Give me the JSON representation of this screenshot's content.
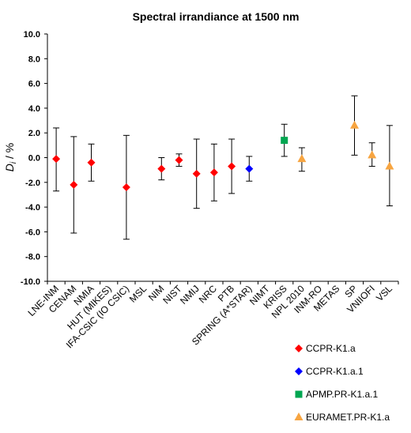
{
  "chart_data": {
    "type": "scatter",
    "title": "Spectral irrandiance at 1500 nm",
    "ylabel_main": "D",
    "ylabel_sub": "i",
    "ylabel_rest": " / %",
    "xlabel": "",
    "ylim": [
      -10.0,
      10.0
    ],
    "ytick_step": 2.0,
    "grid": false,
    "legend_position": "bottom-right",
    "categories": [
      "LNE-INM",
      "CENAM",
      "NMIA",
      "HUT (MIKES)",
      "IFA-CSIC (IO CSIC)",
      "MSL",
      "NIM",
      "NIST",
      "NMIJ",
      "NRC",
      "PTB",
      "SPRING (A*STAR)",
      "NIMT",
      "KRISS",
      "NPL 2010",
      "INM-RO",
      "METAS",
      "SP",
      "VNIIOFI",
      "VSL"
    ],
    "series": [
      {
        "name": "CCPR-K1.a",
        "marker": "diamond",
        "color": "#ff0000",
        "points": [
          {
            "category": "LNE-INM",
            "y": -0.1,
            "yerr_low": -2.7,
            "yerr_high": 2.4
          },
          {
            "category": "CENAM",
            "y": -2.2,
            "yerr_low": -6.1,
            "yerr_high": 1.7
          },
          {
            "category": "NMIA",
            "y": -0.4,
            "yerr_low": -1.9,
            "yerr_high": 1.1
          },
          {
            "category": "IFA-CSIC (IO CSIC)",
            "y": -2.4,
            "yerr_low": -6.6,
            "yerr_high": 1.8
          },
          {
            "category": "NIM",
            "y": -0.9,
            "yerr_low": -1.8,
            "yerr_high": 0.0
          },
          {
            "category": "NIST",
            "y": -0.2,
            "yerr_low": -0.7,
            "yerr_high": 0.3
          },
          {
            "category": "NMIJ",
            "y": -1.3,
            "yerr_low": -4.1,
            "yerr_high": 1.5
          },
          {
            "category": "NRC",
            "y": -1.2,
            "yerr_low": -3.5,
            "yerr_high": 1.1
          },
          {
            "category": "PTB",
            "y": -0.7,
            "yerr_low": -2.9,
            "yerr_high": 1.5
          }
        ]
      },
      {
        "name": "CCPR-K1.a.1",
        "marker": "diamond",
        "color": "#0000ff",
        "points": [
          {
            "category": "SPRING (A*STAR)",
            "y": -0.9,
            "yerr_low": -1.9,
            "yerr_high": 0.1
          }
        ]
      },
      {
        "name": "APMP.PR-K1.a.1",
        "marker": "square",
        "color": "#00a651",
        "points": [
          {
            "category": "KRISS",
            "y": 1.4,
            "yerr_low": 0.1,
            "yerr_high": 2.7
          }
        ]
      },
      {
        "name": "EURAMET.PR-K1.a",
        "marker": "triangle",
        "color": "#f7a541",
        "points": [
          {
            "category": "NPL 2010",
            "y": -0.1,
            "yerr_low": -1.1,
            "yerr_high": 0.8
          },
          {
            "category": "SP",
            "y": 2.6,
            "yerr_low": 0.2,
            "yerr_high": 5.0
          },
          {
            "category": "VNIIOFI",
            "y": 0.2,
            "yerr_low": -0.7,
            "yerr_high": 1.2
          },
          {
            "category": "VSL",
            "y": -0.7,
            "yerr_low": -3.9,
            "yerr_high": 2.6
          }
        ]
      }
    ]
  }
}
